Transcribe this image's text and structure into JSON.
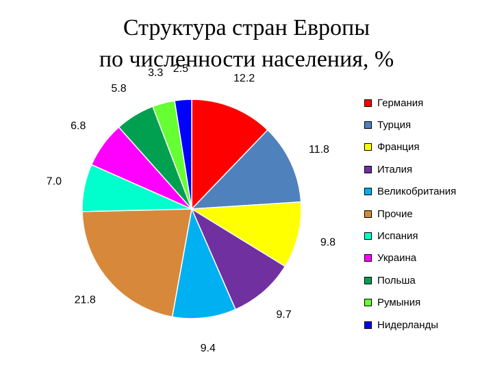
{
  "title_line1": "Структура стран Европы",
  "title_line2": "по численности населения, %",
  "chart_data": {
    "type": "pie",
    "title": "Структура стран Европы по численности населения, %",
    "categories": [
      "Германия",
      "Турция",
      "Франция",
      "Италия",
      "Великобритания",
      "Прочие",
      "Испания",
      "Украина",
      "Польша",
      "Румыния",
      "Нидерланды"
    ],
    "values": [
      12.2,
      11.8,
      9.8,
      9.7,
      9.4,
      21.8,
      7.0,
      6.8,
      5.8,
      3.3,
      2.5
    ],
    "labels": [
      "12.2",
      "11.8",
      "9.8",
      "9.7",
      "9.4",
      "21.8",
      "7.0",
      "6.8",
      "5.8",
      "3.3",
      "2.5"
    ],
    "colors": [
      "#ff0000",
      "#4f81bd",
      "#ffff00",
      "#7030a0",
      "#00b0f0",
      "#d8883a",
      "#00ffcc",
      "#ff00ff",
      "#00a050",
      "#66ff33",
      "#0000ff"
    ],
    "legend_position": "right",
    "start_angle_deg": 0,
    "direction": "clockwise"
  }
}
